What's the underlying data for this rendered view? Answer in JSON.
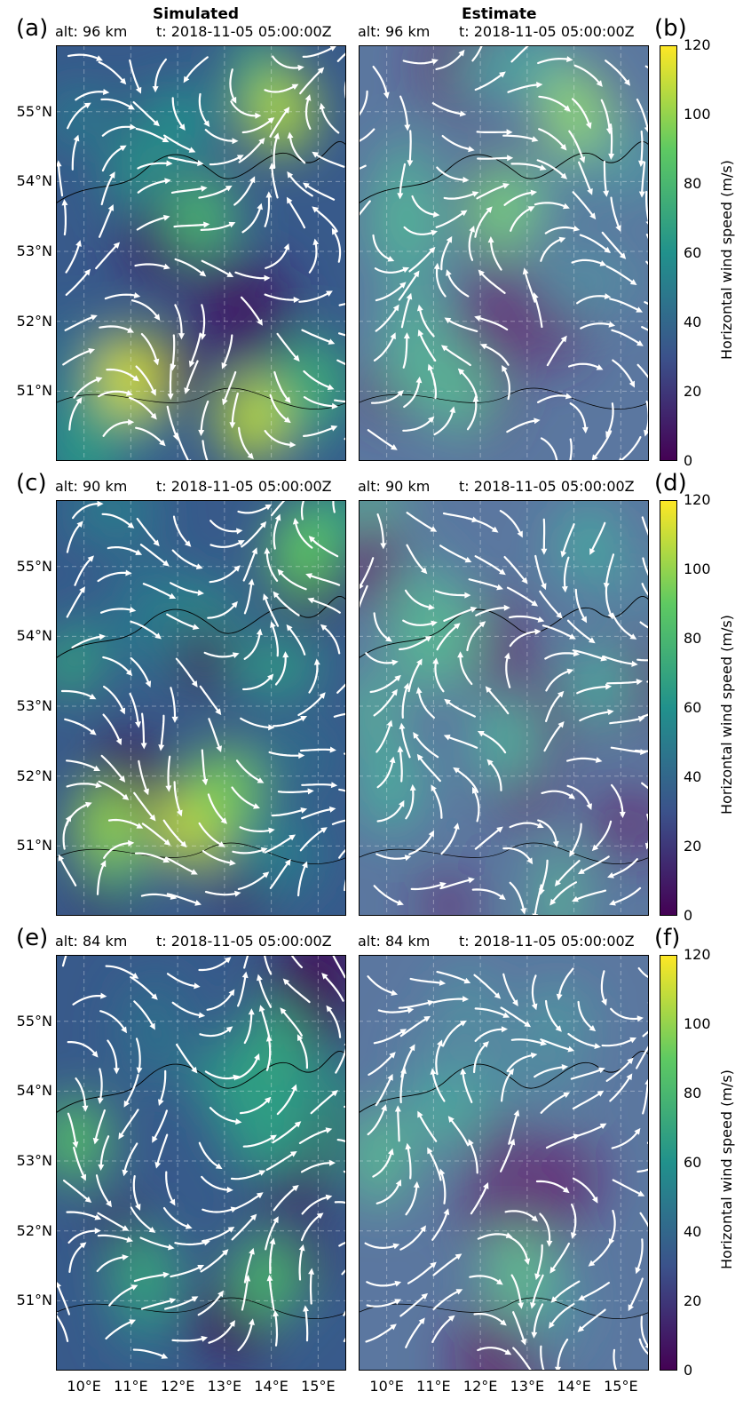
{
  "column_titles": [
    "Simulated",
    "Estimate"
  ],
  "chart_data": [
    {
      "panel": "(a)",
      "type": "heatmap",
      "column": "Simulated",
      "alt_label": "alt: 96 km",
      "time_label": "t: 2018-11-05 05:00:00Z",
      "hotspots": [
        {
          "lon": 14.2,
          "lat": 55.0,
          "speed": 105
        },
        {
          "lon": 11.0,
          "lat": 51.2,
          "speed": 112
        },
        {
          "lon": 13.6,
          "lat": 50.6,
          "speed": 108
        },
        {
          "lon": 12.5,
          "lat": 53.5,
          "speed": 80
        }
      ]
    },
    {
      "panel": "(b)",
      "type": "heatmap",
      "column": "Estimate",
      "alt_label": "alt: 96 km",
      "time_label": "t: 2018-11-05 05:00:00Z",
      "hotspots": [
        {
          "lon": 14.0,
          "lat": 55.0,
          "speed": 95
        },
        {
          "lon": 12.5,
          "lat": 53.6,
          "speed": 88
        },
        {
          "lon": 11.5,
          "lat": 51.0,
          "speed": 70
        }
      ]
    },
    {
      "panel": "(c)",
      "type": "heatmap",
      "column": "Simulated",
      "alt_label": "alt: 90 km",
      "time_label": "t: 2018-11-05 05:00:00Z",
      "hotspots": [
        {
          "lon": 10.5,
          "lat": 51.3,
          "speed": 100
        },
        {
          "lon": 12.3,
          "lat": 51.3,
          "speed": 110
        },
        {
          "lon": 13.0,
          "lat": 51.8,
          "speed": 95
        },
        {
          "lon": 14.7,
          "lat": 55.2,
          "speed": 90
        }
      ]
    },
    {
      "panel": "(d)",
      "type": "heatmap",
      "column": "Estimate",
      "alt_label": "alt: 90 km",
      "time_label": "t: 2018-11-05 05:00:00Z",
      "hotspots": [
        {
          "lon": 12.5,
          "lat": 52.5,
          "speed": 65
        },
        {
          "lon": 14.5,
          "lat": 53.3,
          "speed": 60
        },
        {
          "lon": 14.3,
          "lat": 55.3,
          "speed": 60
        }
      ]
    },
    {
      "panel": "(e)",
      "type": "heatmap",
      "column": "Simulated",
      "alt_label": "alt: 84 km",
      "time_label": "t: 2018-11-05 05:00:00Z",
      "hotspots": [
        {
          "lon": 9.8,
          "lat": 53.3,
          "speed": 85
        },
        {
          "lon": 13.9,
          "lat": 51.3,
          "speed": 80
        },
        {
          "lon": 14.1,
          "lat": 54.7,
          "speed": 70
        }
      ]
    },
    {
      "panel": "(f)",
      "type": "heatmap",
      "column": "Estimate",
      "alt_label": "alt: 84 km",
      "time_label": "t: 2018-11-05 05:00:00Z",
      "hotspots": [
        {
          "lon": 12.8,
          "lat": 51.4,
          "speed": 75
        },
        {
          "lon": 13.5,
          "lat": 54.4,
          "speed": 45
        }
      ]
    }
  ],
  "axes": {
    "lat_ticks": [
      "55°N",
      "54°N",
      "53°N",
      "52°N",
      "51°N"
    ],
    "lat_values": [
      55,
      54,
      53,
      52,
      51
    ],
    "lon_ticks": [
      "10°E",
      "11°E",
      "12°E",
      "13°E",
      "14°E",
      "15°E"
    ],
    "lon_values": [
      10,
      11,
      12,
      13,
      14,
      15
    ],
    "lon_range": [
      9.4,
      15.6
    ],
    "lat_range": [
      50.0,
      55.95
    ]
  },
  "colorbar": {
    "label": "Horizontal wind speed (m/s)",
    "ticks": [
      "120",
      "100",
      "80",
      "60",
      "40",
      "20",
      "0"
    ],
    "range": [
      0,
      120
    ],
    "colormap": "viridis",
    "colors": [
      "#440154",
      "#3b528b",
      "#21918c",
      "#5ec962",
      "#fde725"
    ]
  }
}
